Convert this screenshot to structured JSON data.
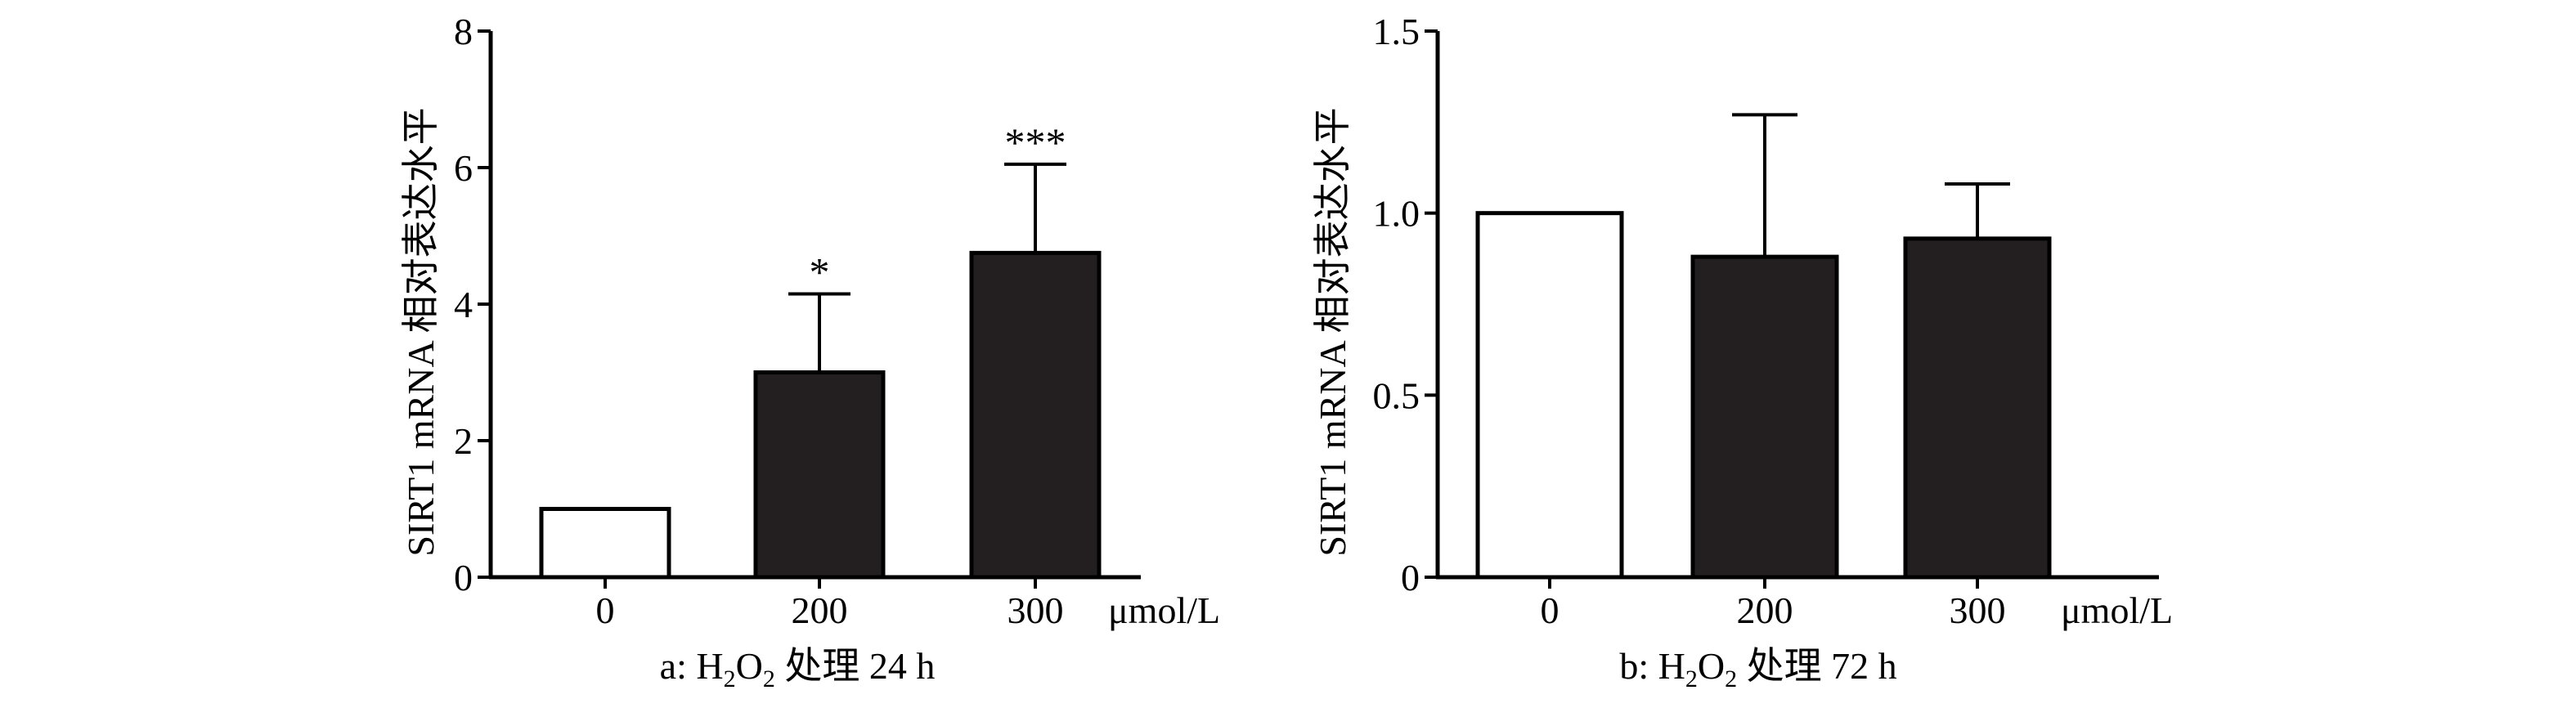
{
  "chart_data": [
    {
      "type": "bar",
      "categories": [
        "0",
        "200",
        "300"
      ],
      "values": [
        1.0,
        3.0,
        4.75
      ],
      "error_upper": [
        0,
        4.15,
        6.05
      ],
      "significance": [
        "",
        "*",
        "***"
      ],
      "bar_fill": [
        "#ffffff",
        "#231f20",
        "#231f20"
      ],
      "ylabel": "SIRT1 mRNA 相对表达水平",
      "x_unit": "μmol/L",
      "ylim": [
        0,
        8
      ],
      "yticks": [
        0,
        2,
        4,
        6,
        8
      ],
      "ytick_labels": [
        "0",
        "2",
        "4",
        "6",
        "8"
      ],
      "caption": {
        "prefix": "a: H",
        "sub1": "2",
        "mid": "O",
        "sub2": "2",
        "suffix": " 处理 24 h"
      }
    },
    {
      "type": "bar",
      "categories": [
        "0",
        "200",
        "300"
      ],
      "values": [
        1.0,
        0.88,
        0.93
      ],
      "error_upper": [
        0,
        1.27,
        1.08
      ],
      "significance": [
        "",
        "",
        ""
      ],
      "bar_fill": [
        "#ffffff",
        "#231f20",
        "#231f20"
      ],
      "ylabel": "SIRT1 mRNA 相对表达水平",
      "x_unit": "μmol/L",
      "ylim": [
        0,
        1.5
      ],
      "yticks": [
        0,
        0.5,
        1.0,
        1.5
      ],
      "ytick_labels": [
        "0",
        "0.5",
        "1.0",
        "1.5"
      ],
      "caption": {
        "prefix": "b: H",
        "sub1": "2",
        "mid": "O",
        "sub2": "2",
        "suffix": " 处理 72 h"
      }
    }
  ]
}
